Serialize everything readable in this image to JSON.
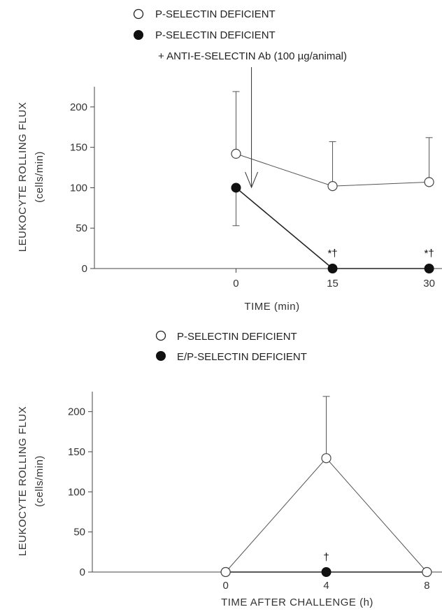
{
  "chart_data": [
    {
      "type": "line",
      "legend": [
        {
          "marker": "open-circle",
          "label": "P-SELECTIN DEFICIENT"
        },
        {
          "marker": "filled-circle",
          "label": "P-SELECTIN DEFICIENT",
          "sublabel": "+ ANTI-E-SELECTIN Ab (100 µg/animal)"
        }
      ],
      "xlabel": "TIME (min)",
      "ylabel": "LEUKOCYTE ROLLING FLUX",
      "ylabel_units": "(cells/min)",
      "ylim": [
        0,
        225
      ],
      "yticks": [
        0,
        50,
        100,
        150,
        200
      ],
      "xlim": [
        -22,
        32
      ],
      "xticks": [
        0,
        15,
        30
      ],
      "series": [
        {
          "marker": "open",
          "x": [
            0,
            15,
            30
          ],
          "values": [
            142,
            102,
            107
          ],
          "error_upper": [
            219,
            157,
            162
          ]
        },
        {
          "marker": "filled",
          "x": [
            0,
            15,
            30
          ],
          "values": [
            100,
            0,
            0
          ],
          "error_lower": [
            53,
            null,
            null
          ]
        }
      ],
      "annotations": [
        {
          "x": 15,
          "y": 18,
          "text": "*†"
        },
        {
          "x": 30,
          "y": 18,
          "text": "*†"
        }
      ],
      "arrow_x": 2.4
    },
    {
      "type": "line",
      "legend": [
        {
          "marker": "open-circle",
          "label": "P-SELECTIN DEFICIENT"
        },
        {
          "marker": "filled-circle",
          "label": "E/P-SELECTIN DEFICIENT"
        }
      ],
      "xlabel": "TIME AFTER CHALLENGE (h)",
      "ylabel": "LEUKOCYTE ROLLING FLUX",
      "ylabel_units": "(cells/min)",
      "ylim": [
        0,
        225
      ],
      "yticks": [
        0,
        50,
        100,
        150,
        200
      ],
      "xlim": [
        -5.3,
        8.6
      ],
      "xticks": [
        0,
        4,
        8
      ],
      "series": [
        {
          "marker": "open",
          "x": [
            0,
            4,
            8
          ],
          "values": [
            0,
            142,
            0
          ],
          "error_upper": [
            null,
            219,
            null
          ]
        },
        {
          "marker": "filled",
          "x": [
            0,
            4,
            8
          ],
          "values": [
            0,
            0,
            0
          ]
        }
      ],
      "annotations": [
        {
          "x": 4,
          "y": 18,
          "text": "†"
        }
      ]
    }
  ]
}
